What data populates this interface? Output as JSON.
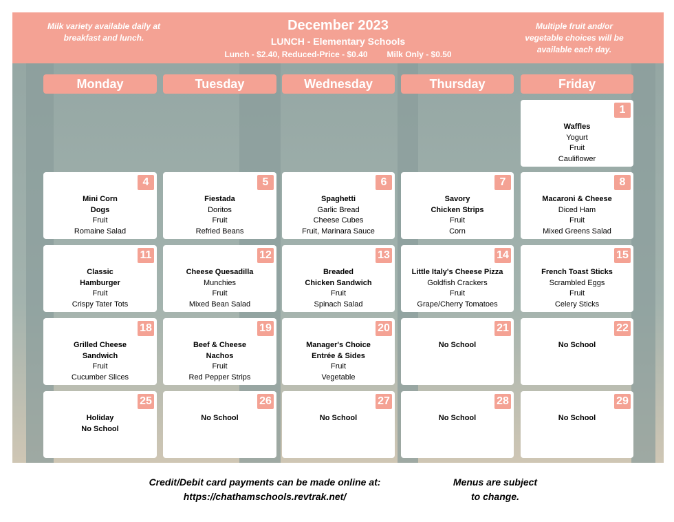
{
  "header": {
    "left_note": "Milk variety available daily at breakfast and lunch.",
    "title": "December 2023",
    "subtitle": "LUNCH - Elementary Schools",
    "price_lunch": "Lunch - $2.40, Reduced-Price - $0.40",
    "price_milk": "Milk Only - $0.50",
    "right_note": "Multiple fruit and/or vegetable choices will be available each day."
  },
  "days": [
    "Monday",
    "Tuesday",
    "Wednesday",
    "Thursday",
    "Friday"
  ],
  "weeks": [
    [
      null,
      null,
      null,
      null,
      {
        "date": "1",
        "lines": [
          "Waffles",
          "Yogurt",
          "Fruit",
          "Cauliflower"
        ],
        "bold": 1
      }
    ],
    [
      {
        "date": "4",
        "lines": [
          "Mini Corn",
          "Dogs",
          "Fruit",
          "Romaine Salad"
        ],
        "bold": 2
      },
      {
        "date": "5",
        "lines": [
          "Fiestada",
          "Doritos",
          "Fruit",
          "Refried Beans"
        ],
        "bold": 1
      },
      {
        "date": "6",
        "lines": [
          "Spaghetti",
          "Garlic Bread",
          "Cheese Cubes",
          "Fruit, Marinara Sauce"
        ],
        "bold": 1
      },
      {
        "date": "7",
        "lines": [
          "Savory",
          "Chicken Strips",
          "Fruit",
          "Corn"
        ],
        "bold": 2
      },
      {
        "date": "8",
        "lines": [
          "Macaroni & Cheese",
          "Diced Ham",
          "Fruit",
          "Mixed Greens Salad"
        ],
        "bold": 1
      }
    ],
    [
      {
        "date": "11",
        "lines": [
          "Classic",
          "Hamburger",
          "Fruit",
          "Crispy Tater Tots"
        ],
        "bold": 2
      },
      {
        "date": "12",
        "lines": [
          "Cheese Quesadilla",
          "Munchies",
          "Fruit",
          "Mixed Bean Salad"
        ],
        "bold": 1
      },
      {
        "date": "13",
        "lines": [
          "Breaded",
          "Chicken Sandwich",
          "Fruit",
          "Spinach Salad"
        ],
        "bold": 2
      },
      {
        "date": "14",
        "lines": [
          "Little Italy's Cheese Pizza",
          "Goldfish Crackers",
          "Fruit",
          "Grape/Cherry Tomatoes"
        ],
        "bold": 1
      },
      {
        "date": "15",
        "lines": [
          "French Toast Sticks",
          "Scrambled Eggs",
          "Fruit",
          "Celery Sticks"
        ],
        "bold": 1
      }
    ],
    [
      {
        "date": "18",
        "lines": [
          "Grilled Cheese",
          "Sandwich",
          "Fruit",
          "Cucumber Slices"
        ],
        "bold": 2
      },
      {
        "date": "19",
        "lines": [
          "Beef & Cheese",
          "Nachos",
          "Fruit",
          "Red Pepper Strips"
        ],
        "bold": 2
      },
      {
        "date": "20",
        "lines": [
          "Manager's Choice",
          "Entrée & Sides",
          "Fruit",
          "Vegetable"
        ],
        "bold": 2
      },
      {
        "date": "21",
        "lines": [
          "No School"
        ],
        "bold": 1
      },
      {
        "date": "22",
        "lines": [
          "No School"
        ],
        "bold": 1
      }
    ],
    [
      {
        "date": "25",
        "lines": [
          "Holiday",
          "No School"
        ],
        "bold": 2
      },
      {
        "date": "26",
        "lines": [
          "No School"
        ],
        "bold": 1
      },
      {
        "date": "27",
        "lines": [
          "No School"
        ],
        "bold": 1
      },
      {
        "date": "28",
        "lines": [
          "No School"
        ],
        "bold": 1
      },
      {
        "date": "29",
        "lines": [
          "No School"
        ],
        "bold": 1
      }
    ]
  ],
  "footer": {
    "payment_text": "Credit/Debit card payments can be made online at:",
    "payment_link": "https://chathamschools.revtrak.net/",
    "disclaimer_1": "Menus are subject",
    "disclaimer_2": "to change."
  },
  "colors": {
    "accent": "#f4a294",
    "background": "#95a7a4"
  }
}
